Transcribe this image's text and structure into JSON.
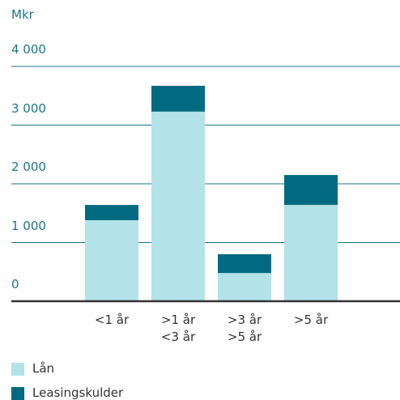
{
  "chart_data": {
    "type": "stacked_bar",
    "title": "Mkr",
    "categories": [
      "<1 år",
      ">1 år\n<3 år",
      ">3 år\n>5 år",
      ">5 år"
    ],
    "series": [
      {
        "name": "Lån",
        "color": "#b3e3e8",
        "values": [
          1380,
          3230,
          480,
          1640
        ]
      },
      {
        "name": "Leasingskulder",
        "color": "#006a80",
        "values": [
          260,
          440,
          320,
          510
        ]
      }
    ],
    "ylim": [
      0,
      4000
    ],
    "yticks": [
      0,
      {
        "value": 1000,
        "label": "1 000"
      },
      {
        "value": 2000,
        "label": "2 000"
      },
      {
        "value": 3000,
        "label": "3 000"
      },
      {
        "value": 4000,
        "label": "4 000"
      }
    ],
    "grid": true,
    "legend": "bottom"
  }
}
